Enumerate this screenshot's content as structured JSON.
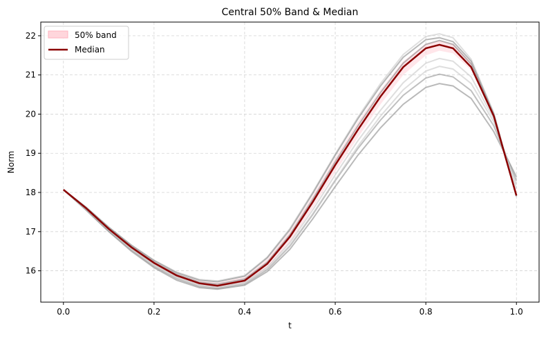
{
  "chart_data": {
    "type": "line",
    "title": "Central 50% Band & Median",
    "xlabel": "t",
    "ylabel": "Norm",
    "xlim": [
      -0.05,
      1.05
    ],
    "ylim": [
      15.2,
      22.35
    ],
    "xticks": [
      0.0,
      0.2,
      0.4,
      0.6,
      0.8,
      1.0
    ],
    "xtick_labels": [
      "0.0",
      "0.2",
      "0.4",
      "0.6",
      "0.8",
      "1.0"
    ],
    "yticks": [
      16,
      17,
      18,
      19,
      20,
      21,
      22
    ],
    "ytick_labels": [
      "16",
      "17",
      "18",
      "19",
      "20",
      "21",
      "22"
    ],
    "grid": true,
    "legend": {
      "position": "top-left",
      "entries": [
        {
          "label": "50% band",
          "color": "#ffd6dc",
          "kind": "patch"
        },
        {
          "label": "Median",
          "color": "#8b0000",
          "kind": "line"
        }
      ]
    },
    "median": {
      "name": "Median",
      "color": "#8b0000",
      "x": [
        0.0,
        0.05,
        0.1,
        0.15,
        0.2,
        0.25,
        0.3,
        0.34,
        0.4,
        0.45,
        0.5,
        0.55,
        0.6,
        0.65,
        0.7,
        0.75,
        0.8,
        0.83,
        0.86,
        0.9,
        0.95,
        1.0
      ],
      "y": [
        18.07,
        17.6,
        17.07,
        16.6,
        16.2,
        15.88,
        15.68,
        15.62,
        15.75,
        16.18,
        16.87,
        17.75,
        18.7,
        19.6,
        20.45,
        21.2,
        21.68,
        21.77,
        21.68,
        21.2,
        19.95,
        17.92
      ]
    },
    "band": {
      "name": "50% band",
      "color": "#ffd6dc",
      "x": [
        0.0,
        0.05,
        0.1,
        0.15,
        0.2,
        0.25,
        0.3,
        0.34,
        0.4,
        0.45,
        0.5,
        0.55,
        0.6,
        0.65,
        0.7,
        0.75,
        0.8,
        0.83,
        0.86,
        0.9,
        0.95,
        1.0
      ],
      "lower": [
        18.07,
        17.58,
        17.04,
        16.56,
        16.15,
        15.83,
        15.62,
        15.56,
        15.67,
        16.07,
        16.73,
        17.6,
        18.52,
        19.4,
        20.25,
        21.0,
        21.5,
        21.62,
        21.55,
        21.12,
        19.95,
        17.95
      ],
      "upper": [
        18.07,
        17.62,
        17.1,
        16.64,
        16.25,
        15.93,
        15.74,
        15.7,
        15.84,
        16.3,
        17.02,
        17.92,
        18.88,
        19.8,
        20.62,
        21.35,
        21.8,
        21.88,
        21.8,
        21.32,
        20.02,
        18.02
      ]
    },
    "sample_curves": [
      {
        "color": "#808080",
        "opacity": 0.55,
        "x": [
          0.0,
          0.05,
          0.1,
          0.15,
          0.2,
          0.25,
          0.3,
          0.34,
          0.4,
          0.45,
          0.5,
          0.55,
          0.6,
          0.65,
          0.7,
          0.75,
          0.8,
          0.83,
          0.86,
          0.9,
          0.95,
          1.0
        ],
        "y": [
          18.07,
          17.55,
          17.0,
          16.5,
          16.08,
          15.76,
          15.57,
          15.53,
          15.63,
          15.98,
          16.55,
          17.32,
          18.15,
          18.95,
          19.65,
          20.25,
          20.68,
          20.78,
          20.72,
          20.4,
          19.55,
          18.4
        ]
      },
      {
        "color": "#808080",
        "opacity": 0.5,
        "x": [
          0.0,
          0.05,
          0.1,
          0.15,
          0.2,
          0.25,
          0.3,
          0.34,
          0.4,
          0.45,
          0.5,
          0.55,
          0.6,
          0.65,
          0.7,
          0.75,
          0.8,
          0.83,
          0.86,
          0.9,
          0.95,
          1.0
        ],
        "y": [
          18.07,
          17.57,
          17.02,
          16.53,
          16.11,
          15.8,
          15.6,
          15.55,
          15.66,
          16.03,
          16.63,
          17.43,
          18.3,
          19.12,
          19.85,
          20.48,
          20.92,
          21.02,
          20.95,
          20.6,
          19.7,
          18.3
        ]
      },
      {
        "color": "#c8c8c8",
        "opacity": 0.6,
        "x": [
          0.0,
          0.05,
          0.1,
          0.15,
          0.2,
          0.25,
          0.3,
          0.34,
          0.4,
          0.45,
          0.5,
          0.55,
          0.6,
          0.65,
          0.7,
          0.75,
          0.8,
          0.83,
          0.86,
          0.9,
          0.95,
          1.0
        ],
        "y": [
          18.07,
          17.58,
          17.04,
          16.55,
          16.14,
          15.83,
          15.63,
          15.58,
          15.68,
          16.05,
          16.65,
          17.45,
          18.32,
          19.18,
          19.95,
          20.62,
          21.1,
          21.22,
          21.15,
          20.78,
          19.8,
          18.2
        ]
      },
      {
        "color": "#c8c8c8",
        "opacity": 0.6,
        "x": [
          0.0,
          0.05,
          0.1,
          0.15,
          0.2,
          0.25,
          0.3,
          0.34,
          0.4,
          0.45,
          0.5,
          0.55,
          0.6,
          0.65,
          0.7,
          0.75,
          0.8,
          0.83,
          0.86,
          0.9,
          0.95,
          1.0
        ],
        "y": [
          18.07,
          17.59,
          17.05,
          16.57,
          16.16,
          15.85,
          15.65,
          15.6,
          15.71,
          16.09,
          16.72,
          17.55,
          18.45,
          19.32,
          20.1,
          20.8,
          21.3,
          21.42,
          21.35,
          20.95,
          19.88,
          18.1
        ]
      },
      {
        "color": "#808080",
        "opacity": 0.55,
        "x": [
          0.0,
          0.05,
          0.1,
          0.15,
          0.2,
          0.25,
          0.3,
          0.34,
          0.4,
          0.45,
          0.5,
          0.55,
          0.6,
          0.65,
          0.7,
          0.75,
          0.8,
          0.83,
          0.86,
          0.9,
          0.95,
          1.0
        ],
        "y": [
          18.07,
          17.61,
          17.09,
          16.62,
          16.22,
          15.91,
          15.71,
          15.66,
          15.79,
          16.22,
          16.92,
          17.82,
          18.78,
          19.7,
          20.55,
          21.3,
          21.78,
          21.88,
          21.78,
          21.28,
          19.98,
          17.9
        ]
      },
      {
        "color": "#c8c8c8",
        "opacity": 0.6,
        "x": [
          0.0,
          0.05,
          0.1,
          0.15,
          0.2,
          0.25,
          0.3,
          0.34,
          0.4,
          0.45,
          0.5,
          0.55,
          0.6,
          0.65,
          0.7,
          0.75,
          0.8,
          0.83,
          0.86,
          0.9,
          0.95,
          1.0
        ],
        "y": [
          18.07,
          17.63,
          17.12,
          16.66,
          16.27,
          15.97,
          15.78,
          15.74,
          15.88,
          16.35,
          17.08,
          18.0,
          18.98,
          19.92,
          20.78,
          21.52,
          21.98,
          22.05,
          21.95,
          21.4,
          20.03,
          17.88
        ]
      },
      {
        "color": "#808080",
        "opacity": 0.55,
        "x": [
          0.0,
          0.05,
          0.1,
          0.15,
          0.2,
          0.25,
          0.3,
          0.34,
          0.4,
          0.45,
          0.5,
          0.55,
          0.6,
          0.65,
          0.7,
          0.75,
          0.8,
          0.83,
          0.86,
          0.9,
          0.95,
          1.0
        ],
        "y": [
          18.07,
          17.62,
          17.11,
          16.65,
          16.26,
          15.95,
          15.76,
          15.72,
          15.86,
          16.33,
          17.05,
          17.97,
          18.95,
          19.88,
          20.72,
          21.45,
          21.9,
          21.95,
          21.85,
          21.35,
          20.0,
          17.92
        ]
      }
    ]
  }
}
